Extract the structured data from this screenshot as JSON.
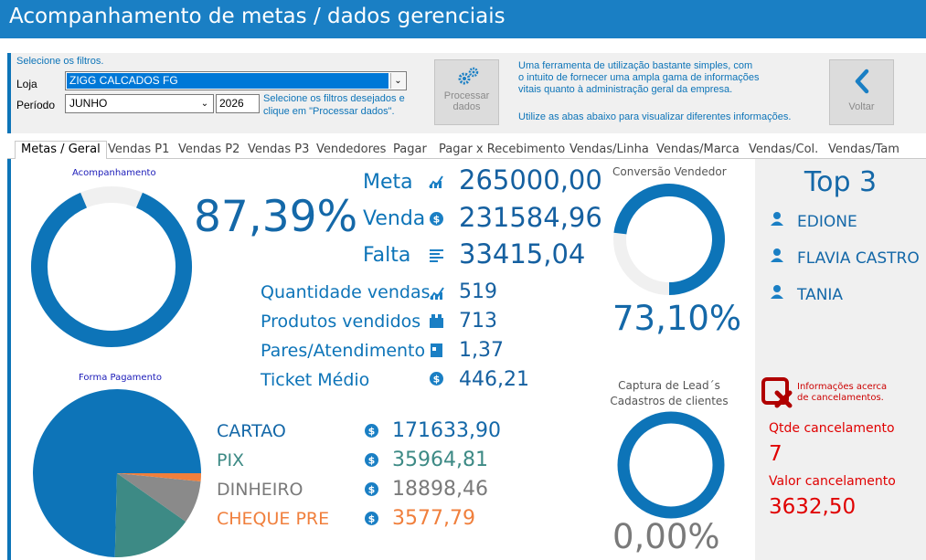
{
  "window": {
    "title": "Acompanhamento de metas / dados gerenciais"
  },
  "filters": {
    "prompt": "Selecione os filtros.",
    "loja_label": "Loja",
    "loja_value": "ZIGG CALCADOS FG",
    "periodo_label": "Período",
    "month_value": "JUNHO",
    "year_value": "2026",
    "hint": [
      "Selecione os filtros desejados e",
      "clique em \"Processar dados\"."
    ],
    "process_button": [
      "Processar",
      "dados"
    ],
    "info": [
      "Uma ferramenta de utilização bastante simples, com",
      "o intuito de fornecer uma ampla gama de informações",
      "vitais quanto à administração geral da empresa."
    ],
    "info2": "Utilize as abas abaixo para visualizar diferentes informações.",
    "back_button": "Voltar"
  },
  "tabs": [
    "Metas / Geral",
    "Vendas P1",
    "Vendas P2",
    "Vendas P3",
    "Vendedores",
    "Pagar",
    "Pagar x Recebimento",
    "Vendas/Linha",
    "Vendas/Marca",
    "Vendas/Col.",
    "Vendas/Tam"
  ],
  "acompanhamento": {
    "title": "Acompanhamento",
    "percent": "87,39%",
    "percent_value": 87.39
  },
  "metrics": [
    {
      "label": "Meta",
      "value": "265000,00",
      "icon": "chart-icon"
    },
    {
      "label": "Venda",
      "value": "231584,96",
      "icon": "coin-icon"
    },
    {
      "label": "Falta",
      "value": "33415,04",
      "icon": "list-icon"
    }
  ],
  "stats": [
    {
      "label": "Quantidade vendas",
      "value": "519",
      "icon": "chart-icon"
    },
    {
      "label": "Produtos vendidos",
      "value": "713",
      "icon": "box-icon"
    },
    {
      "label": "Pares/Atendimento",
      "value": "1,37",
      "icon": "card-icon"
    },
    {
      "label": "Ticket Médio",
      "value": "446,21",
      "icon": "coin-icon"
    }
  ],
  "forma_pagamento": {
    "title": "Forma Pagamento",
    "items": [
      {
        "label": "CARTAO",
        "value": "171633,90",
        "amount": 171633.9,
        "color": "#0d74b8"
      },
      {
        "label": "PIX",
        "value": "35964,81",
        "amount": 35964.81,
        "color": "#3d8a85"
      },
      {
        "label": "DINHEIRO",
        "value": "18898,46",
        "amount": 18898.46,
        "color": "#8a8a8a"
      },
      {
        "label": "CHEQUE PRE",
        "value": "3577,79",
        "amount": 3577.79,
        "color": "#f07f3c"
      }
    ]
  },
  "conversao": {
    "title": "Conversão Vendedor",
    "percent": "73,10%",
    "percent_value": 73.1
  },
  "captura": {
    "title": [
      "Captura de Lead´s",
      "Cadastros de clientes"
    ],
    "percent": "0,00%",
    "percent_value": 0.0
  },
  "top3": {
    "title": "Top 3",
    "names": [
      "EDIONE",
      "FLAVIA CASTRO",
      "TANIA"
    ]
  },
  "cancelamentos": {
    "info": [
      "Informações acerca",
      "de cancelamentos."
    ],
    "qtde_label": "Qtde cancelamento",
    "qtde_value": "7",
    "valor_label": "Valor cancelamento",
    "valor_value": "3632,50"
  },
  "colors": {
    "accent": "#0d74b8",
    "title_bar": "#1a7fc4",
    "danger": "#e00000",
    "track": "#f0f0f0"
  }
}
